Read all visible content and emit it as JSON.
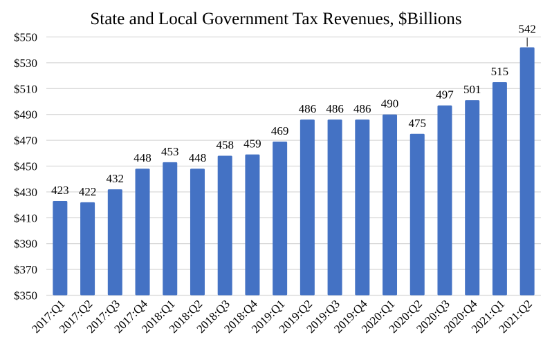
{
  "chart_data": {
    "type": "bar",
    "title": "State and Local Government Tax Revenues, $Billions",
    "xlabel": "",
    "ylabel": "",
    "categories": [
      "2017:Q1",
      "2017:Q2",
      "2017:Q3",
      "2017:Q4",
      "2018:Q1",
      "2018:Q2",
      "2018:Q3",
      "2018:Q4",
      "2019:Q1",
      "2019:Q2",
      "2019:Q3",
      "2019:Q4",
      "2020:Q1",
      "2020:Q2",
      "2020:Q3",
      "2020:Q4",
      "2021:Q1",
      "2021:Q2"
    ],
    "values": [
      423,
      422,
      432,
      448,
      453,
      448,
      458,
      459,
      469,
      486,
      486,
      486,
      490,
      475,
      497,
      501,
      515,
      542
    ],
    "ylim": [
      350,
      550
    ],
    "yticks": [
      "$350",
      "$370",
      "$390",
      "$410",
      "$430",
      "$450",
      "$470",
      "$490",
      "$510",
      "$530",
      "$550"
    ],
    "ytick_values": [
      350,
      370,
      390,
      410,
      430,
      450,
      470,
      490,
      510,
      530,
      550
    ],
    "grid": true,
    "legend": "none",
    "bar_color": "#4472C4",
    "grid_color": "#D9D9D9"
  }
}
